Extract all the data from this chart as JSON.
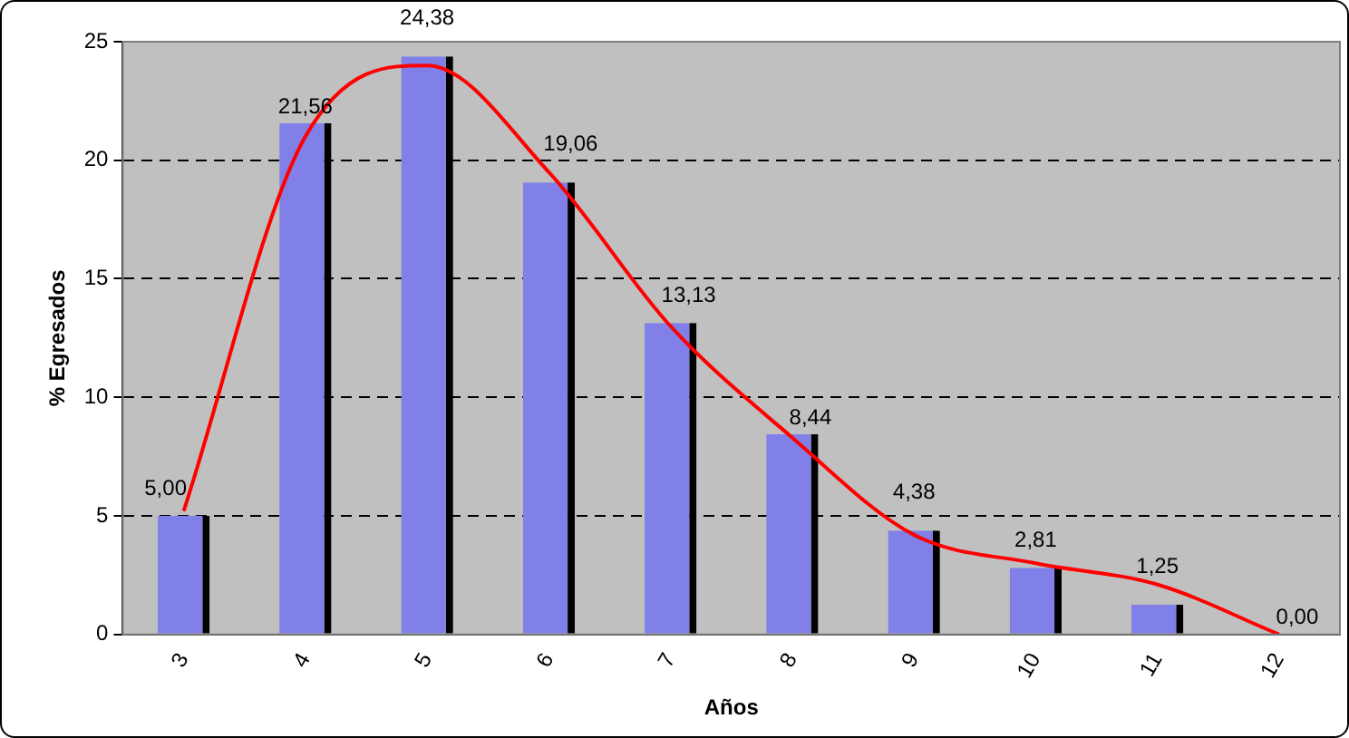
{
  "chart_data": {
    "type": "bar",
    "xlabel": "Años",
    "ylabel": "% Egresados",
    "categories": [
      "3",
      "4",
      "5",
      "6",
      "7",
      "8",
      "9",
      "10",
      "11",
      "12"
    ],
    "series": [
      {
        "type": "bar",
        "color": "#8080e8",
        "values": [
          5.0,
          21.56,
          24.38,
          19.06,
          13.13,
          8.44,
          4.38,
          2.81,
          1.25,
          0.0
        ],
        "value_labels": [
          "5,00",
          "21,56",
          "24,38",
          "19,06",
          "13,13",
          "8,44",
          "4,38",
          "2,81",
          "1,25",
          "0,00"
        ]
      },
      {
        "type": "line",
        "color": "#ff0000",
        "marker": "none",
        "values": [
          5.2,
          21,
          24,
          19.5,
          13,
          8.3,
          4.2,
          3,
          2.1,
          0
        ]
      }
    ],
    "ylim": [
      0,
      25
    ],
    "yticks": [
      0,
      5,
      10,
      15,
      20,
      25
    ],
    "grid": "y",
    "legend": false
  }
}
